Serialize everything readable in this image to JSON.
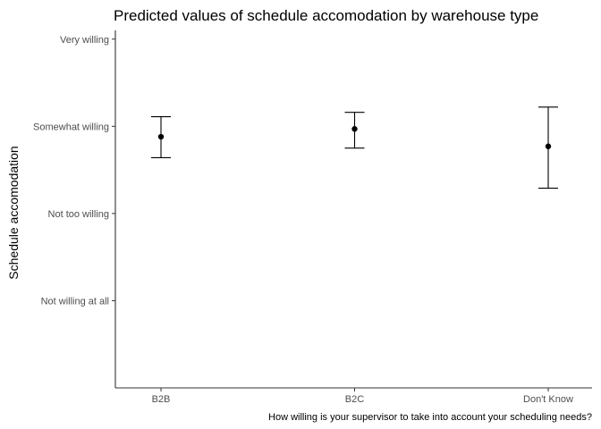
{
  "chart_data": {
    "type": "scatter",
    "title": "Predicted values of schedule accomodation by warehouse type",
    "xlabel": "How willing is your supervisor to take into account your scheduling needs?",
    "ylabel": "Schedule accomodation",
    "categories": [
      "B2B",
      "B2C",
      "Don't Know"
    ],
    "y_scale": {
      "levels": [
        1,
        2,
        3,
        4
      ],
      "labels": [
        "Not willing at all",
        "Not too willing",
        "Somewhat willing",
        "Very willing"
      ]
    },
    "ylim": [
      0,
      4.1
    ],
    "points": [
      {
        "category": "B2B",
        "value": 2.88,
        "low": 2.64,
        "high": 3.11
      },
      {
        "category": "B2C",
        "value": 2.97,
        "low": 2.75,
        "high": 3.16
      },
      {
        "category": "Don't Know",
        "value": 2.77,
        "low": 2.29,
        "high": 3.22
      }
    ],
    "grid": false,
    "legend": "none",
    "colors": {
      "marks": "#000000",
      "axis": "#333333",
      "tick_text": "#4d4d4d"
    }
  }
}
